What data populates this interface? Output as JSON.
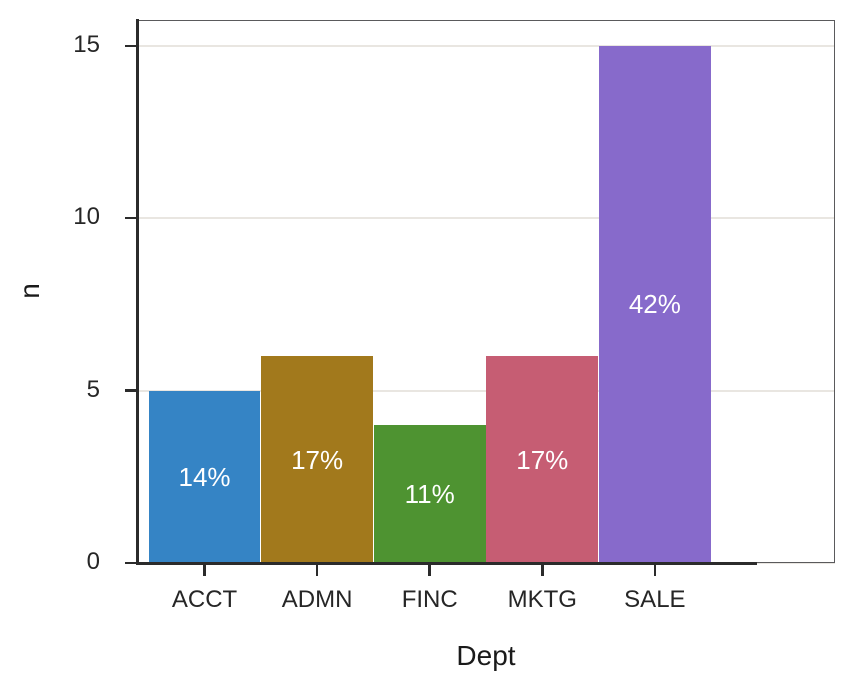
{
  "chart_data": {
    "type": "bar",
    "title": "",
    "xlabel": "Dept",
    "ylabel": "n",
    "categories": [
      "ACCT",
      "ADMN",
      "FINC",
      "MKTG",
      "SALE"
    ],
    "values": [
      5,
      6,
      4,
      6,
      15
    ],
    "bar_labels": [
      "14%",
      "17%",
      "11%",
      "17%",
      "42%"
    ],
    "bar_colors": [
      "#3584c5",
      "#a2791c",
      "#4e9331",
      "#c65d73",
      "#876acb"
    ],
    "y_ticks": [
      0,
      5,
      10,
      15
    ],
    "y_tick_labels": [
      "0",
      "5",
      "10",
      "15"
    ],
    "ylim": [
      0,
      15.75
    ],
    "grid": "horizontal-only",
    "legend": "none"
  },
  "style": {
    "background": "#ffffff",
    "axis_line_color": "#2b2b2b",
    "panel_border_color": "#5a5a5c",
    "gridline_color": "#e9e6e1",
    "tick_label_color": "#262626",
    "title_color": "#1a1a1a",
    "bar_label_color": "#ffffff"
  }
}
